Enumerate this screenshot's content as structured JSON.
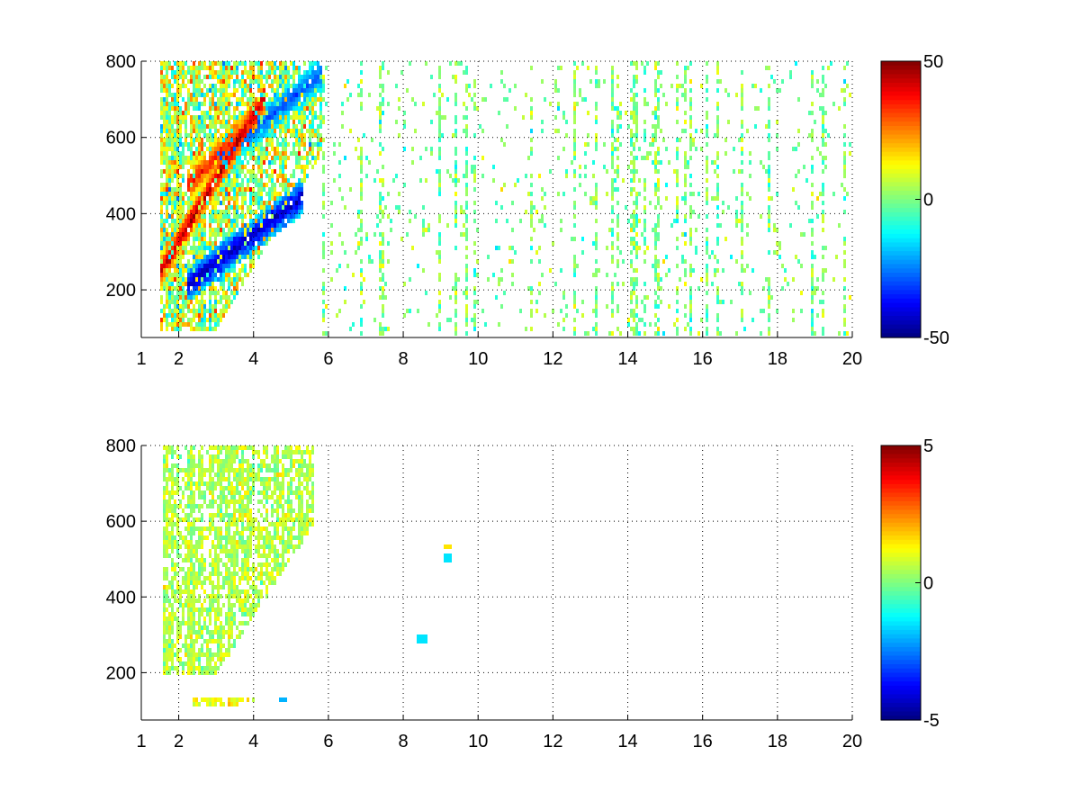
{
  "chart_data": [
    {
      "type": "heatmap",
      "title": "",
      "xlabel": "",
      "ylabel": "",
      "xlim": [
        1,
        20
      ],
      "ylim": [
        75,
        800
      ],
      "xticks": [
        1,
        2,
        4,
        6,
        8,
        10,
        12,
        14,
        16,
        18,
        20
      ],
      "yticks": [
        200,
        400,
        600,
        800
      ],
      "grid": true,
      "grid_style": "dotted",
      "colormap": "jet",
      "clim": [
        -50,
        50
      ],
      "colorbar_ticks": [
        50,
        0,
        -50
      ],
      "features": [
        {
          "kind": "band",
          "x": [
            1.5,
            4.3
          ],
          "y_start": 245,
          "slope": 165,
          "value": 45,
          "width_y": 40
        },
        {
          "kind": "band",
          "x": [
            2.2,
            5.3
          ],
          "y_start": 210,
          "slope": 75,
          "value": -45,
          "width_y": 45
        },
        {
          "kind": "band",
          "x": [
            2.2,
            4.2
          ],
          "y_start": 470,
          "slope": 100,
          "value": 35,
          "width_y": 45
        },
        {
          "kind": "band",
          "x": [
            3.0,
            5.8
          ],
          "y_start": 540,
          "slope": 80,
          "value": -30,
          "width_y": 45
        },
        {
          "kind": "region",
          "x": [
            1.5,
            5.8
          ],
          "y": [
            90,
            800
          ],
          "value": 5,
          "spread": 20
        },
        {
          "kind": "noise",
          "x": [
            5.8,
            20
          ],
          "y": [
            80,
            800
          ],
          "value": 0,
          "spread": 10
        }
      ]
    },
    {
      "type": "heatmap",
      "title": "",
      "xlabel": "",
      "ylabel": "",
      "xlim": [
        1,
        20
      ],
      "ylim": [
        75,
        800
      ],
      "xticks": [
        1,
        2,
        4,
        6,
        8,
        10,
        12,
        14,
        16,
        18,
        20
      ],
      "yticks": [
        200,
        400,
        600,
        800
      ],
      "grid": true,
      "grid_style": "dotted",
      "colormap": "jet",
      "clim": [
        -5,
        5
      ],
      "colorbar_ticks": [
        5,
        0,
        -5
      ],
      "features": [
        {
          "kind": "region",
          "x": [
            1.6,
            5.6
          ],
          "y": [
            195,
            800
          ],
          "value": 0.5,
          "spread": 0.8
        },
        {
          "kind": "region",
          "x": [
            2.4,
            4.0
          ],
          "y": [
            105,
            135
          ],
          "value": 1.2,
          "spread": 0.6
        },
        {
          "kind": "point",
          "x": 9.2,
          "y": 505,
          "value": -1.5
        },
        {
          "kind": "point",
          "x": 9.2,
          "y": 535,
          "value": 1.5
        },
        {
          "kind": "point",
          "x": 8.5,
          "y": 290,
          "value": -1.5
        },
        {
          "kind": "point",
          "x": 4.8,
          "y": 130,
          "value": -2.0
        }
      ]
    }
  ]
}
